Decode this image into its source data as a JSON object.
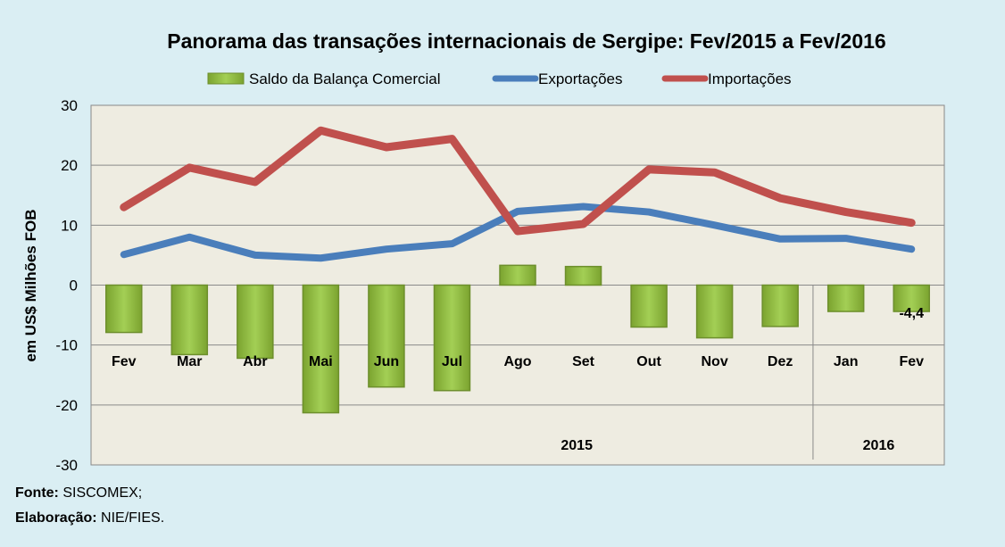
{
  "chart_data": {
    "type": "bar+line",
    "title": "Panorama  das transações internacionais de Sergipe: Fev/2015 a Fev/2016",
    "ylabel": "em US$ Milhões FOB",
    "xlabel": "",
    "ylim": [
      -30,
      30
    ],
    "yticks": [
      30,
      20,
      10,
      0,
      -10,
      -20,
      -30
    ],
    "grid": true,
    "legend_position": "top",
    "categories": [
      "Fev",
      "Mar",
      "Abr",
      "Mai",
      "Jun",
      "Jul",
      "Ago",
      "Set",
      "Out",
      "Nov",
      "Dez",
      "Jan",
      "Fev"
    ],
    "groups": [
      {
        "label": "2015",
        "count": 11
      },
      {
        "label": "2016",
        "count": 2
      }
    ],
    "series": [
      {
        "name": "Saldo da Balança Comercial",
        "kind": "bar",
        "color": "#92c33f",
        "values": [
          -7.9,
          -11.6,
          -12.2,
          -21.3,
          -17.0,
          -17.6,
          3.3,
          3.1,
          -7.0,
          -8.8,
          -6.9,
          -4.4,
          -4.4
        ]
      },
      {
        "name": "Exportações",
        "kind": "line",
        "color": "#4a7ebb",
        "values": [
          5.1,
          8.0,
          5.0,
          4.5,
          6.0,
          6.9,
          12.3,
          13.1,
          12.2,
          10.0,
          7.7,
          7.8,
          6.0
        ]
      },
      {
        "name": "Importações",
        "kind": "line",
        "color": "#c0504d",
        "values": [
          13.0,
          19.6,
          17.2,
          25.8,
          23.0,
          24.4,
          9.0,
          10.2,
          19.3,
          18.8,
          14.5,
          12.2,
          10.4
        ]
      }
    ],
    "annotations": [
      {
        "category_index": 12,
        "series": "Saldo da Balança Comercial",
        "text": "-4,4"
      }
    ]
  },
  "footer": {
    "source_label": "Fonte:",
    "source_value": " SISCOMEX;",
    "credit_label": "Elaboração:",
    "credit_value": " NIE/FIES."
  }
}
